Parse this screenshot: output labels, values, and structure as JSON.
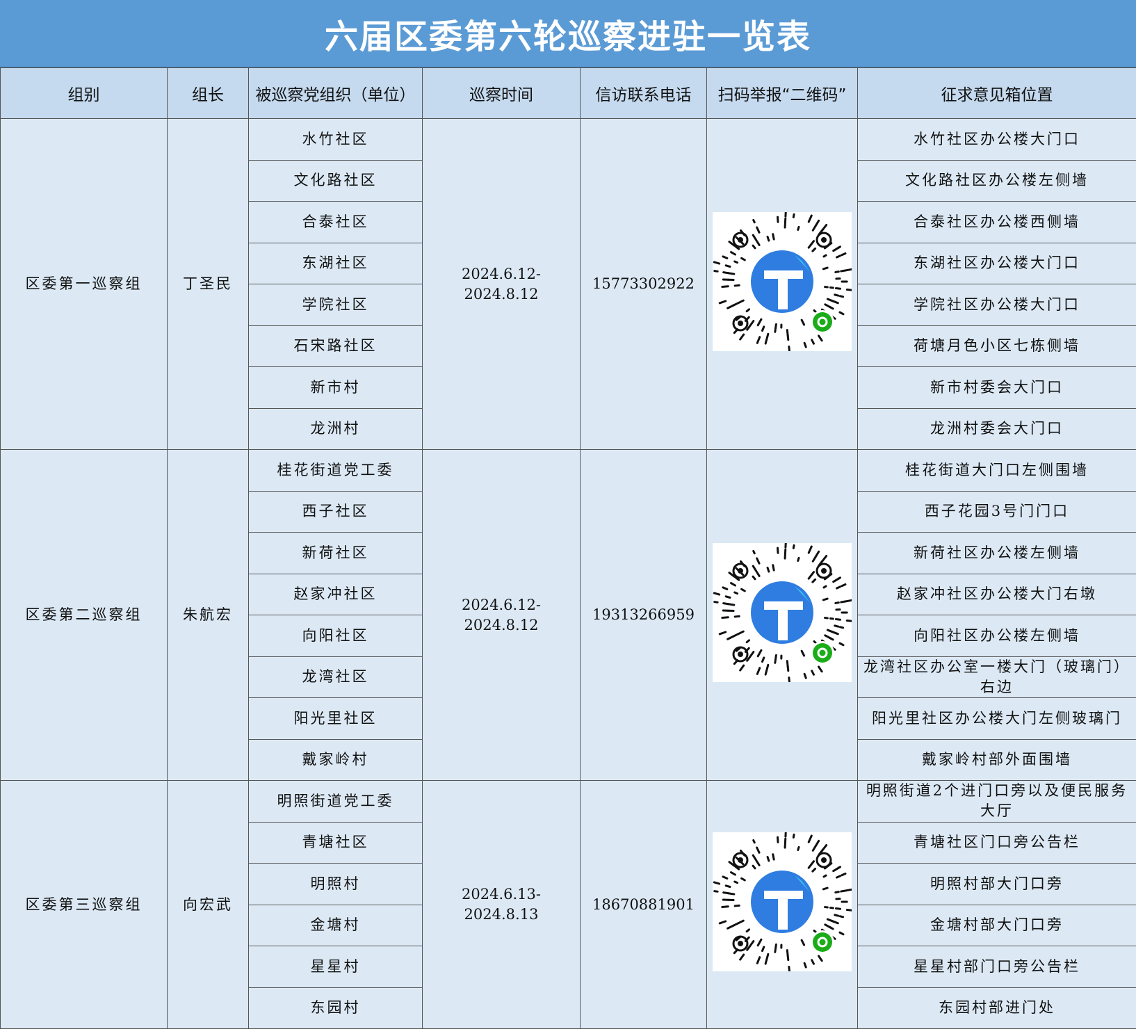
{
  "title": "六届区委第六轮巡察进驻一览表",
  "headers": [
    "组别",
    "组长",
    "被巡察党组织（单位）",
    "巡察时间",
    "信访联系电话",
    "扫码举报“二维码”",
    "征求意见箱位置"
  ],
  "groups": [
    {
      "group": "区委第一巡察组",
      "leader": "丁圣民",
      "time": "2024.6.12-2024.8.12",
      "phone": "15773302922",
      "units": [
        {
          "name": "水竹社区",
          "box": "水竹社区办公楼大门口"
        },
        {
          "name": "文化路社区",
          "box": "文化路社区办公楼左侧墙"
        },
        {
          "name": "合泰社区",
          "box": "合泰社区办公楼西侧墙"
        },
        {
          "name": "东湖社区",
          "box": "东湖社区办公楼大门口"
        },
        {
          "name": "学院社区",
          "box": "学院社区办公楼大门口"
        },
        {
          "name": "石宋路社区",
          "box": "荷塘月色小区七栋侧墙"
        },
        {
          "name": "新市村",
          "box": "新市村委会大门口"
        },
        {
          "name": "龙洲村",
          "box": "龙洲村委会大门口"
        }
      ]
    },
    {
      "group": "区委第二巡察组",
      "leader": "朱航宏",
      "time": "2024.6.12-2024.8.12",
      "phone": "19313266959",
      "units": [
        {
          "name": "桂花街道党工委",
          "box": "桂花街道大门口左侧围墙"
        },
        {
          "name": "西子社区",
          "box": "西子花园3号门门口"
        },
        {
          "name": "新荷社区",
          "box": "新荷社区办公楼左侧墙"
        },
        {
          "name": "赵家冲社区",
          "box": "赵家冲社区办公楼大门右墩"
        },
        {
          "name": "向阳社区",
          "box": "向阳社区办公楼左侧墙"
        },
        {
          "name": "龙湾社区",
          "box": "龙湾社区办公室一楼大门（玻璃门）右边"
        },
        {
          "name": "阳光里社区",
          "box": "阳光里社区办公楼大门左侧玻璃门"
        },
        {
          "name": "戴家岭村",
          "box": "戴家岭村部外面围墙"
        }
      ]
    },
    {
      "group": "区委第三巡察组",
      "leader": "向宏武",
      "time": "2024.6.13-2024.8.13",
      "phone": "18670881901",
      "units": [
        {
          "name": "明照街道党工委",
          "box": "明照街道2个进门口旁以及便民服务大厅"
        },
        {
          "name": "青塘社区",
          "box": "青塘社区门口旁公告栏"
        },
        {
          "name": "明照村",
          "box": "明照村部大门口旁"
        },
        {
          "name": "金塘村",
          "box": "金塘村部大门口旁"
        },
        {
          "name": "星星村",
          "box": "星星村部门口旁公告栏"
        },
        {
          "name": "东园村",
          "box": "东园村部进门处"
        }
      ]
    }
  ]
}
